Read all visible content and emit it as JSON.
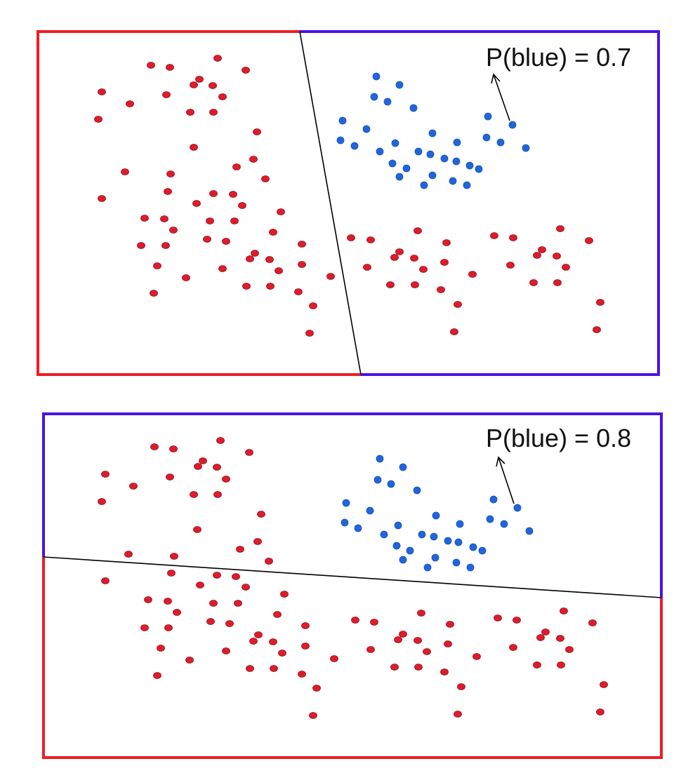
{
  "colors": {
    "red": "#ee1c25",
    "blue": "#4a12e6",
    "red_point": "#e01b2c",
    "blue_point": "#1f66dd",
    "boundary": "#000000"
  },
  "panels": [
    {
      "label": "P(blue) = 0.7",
      "boundary": "steep diagonal line",
      "red_points": [
        [
          310,
          83
        ],
        [
          215,
          93
        ],
        [
          242,
          96
        ],
        [
          350,
          100
        ],
        [
          284,
          113
        ],
        [
          276,
          121
        ],
        [
          303,
          122
        ],
        [
          145,
          131
        ],
        [
          237,
          135
        ],
        [
          317,
          138
        ],
        [
          185,
          148
        ],
        [
          271,
          160
        ],
        [
          304,
          160
        ],
        [
          140,
          170
        ],
        [
          366,
          188
        ],
        [
          276,
          210
        ],
        [
          361,
          227
        ],
        [
          337,
          238
        ],
        [
          178,
          245
        ],
        [
          243,
          248
        ],
        [
          378,
          255
        ],
        [
          239,
          273
        ],
        [
          304,
          276
        ],
        [
          332,
          277
        ],
        [
          145,
          283
        ],
        [
          280,
          290
        ],
        [
          345,
          293
        ],
        [
          400,
          302
        ],
        [
          206,
          311
        ],
        [
          234,
          312
        ],
        [
          299,
          315
        ],
        [
          334,
          315
        ],
        [
          247,
          328
        ],
        [
          389,
          331
        ],
        [
          295,
          341
        ],
        [
          322,
          344
        ],
        [
          201,
          350
        ],
        [
          236,
          350
        ],
        [
          430,
          348
        ],
        [
          363,
          361
        ],
        [
          356,
          369
        ],
        [
          384,
          370
        ],
        [
          224,
          379
        ],
        [
          317,
          383
        ],
        [
          397,
          386
        ],
        [
          430,
          377
        ],
        [
          265,
          396
        ],
        [
          471,
          394
        ],
        [
          351,
          408
        ],
        [
          385,
          408
        ],
        [
          219,
          418
        ],
        [
          425,
          416
        ],
        [
          446,
          436
        ],
        [
          441,
          475
        ],
        [
          595,
          329
        ],
        [
          500,
          339
        ],
        [
          528,
          342
        ],
        [
          636,
          346
        ],
        [
          704,
          336
        ],
        [
          731,
          339
        ],
        [
          798,
          326
        ],
        [
          839,
          343
        ],
        [
          569,
          359
        ],
        [
          562,
          367
        ],
        [
          590,
          368
        ],
        [
          772,
          356
        ],
        [
          765,
          364
        ],
        [
          793,
          365
        ],
        [
          523,
          381
        ],
        [
          603,
          384
        ],
        [
          633,
          374
        ],
        [
          727,
          378
        ],
        [
          806,
          381
        ],
        [
          673,
          391
        ],
        [
          556,
          406
        ],
        [
          591,
          406
        ],
        [
          628,
          413
        ],
        [
          760,
          403
        ],
        [
          794,
          403
        ],
        [
          652,
          434
        ],
        [
          855,
          431
        ],
        [
          647,
          473
        ],
        [
          850,
          470
        ]
      ],
      "blue_points": [
        [
          536,
          109
        ],
        [
          569,
          121
        ],
        [
          533,
          138
        ],
        [
          552,
          145
        ],
        [
          589,
          154
        ],
        [
          488,
          172
        ],
        [
          522,
          184
        ],
        [
          616,
          190
        ],
        [
          695,
          166
        ],
        [
          730,
          178
        ],
        [
          485,
          200
        ],
        [
          505,
          208
        ],
        [
          563,
          204
        ],
        [
          651,
          203
        ],
        [
          693,
          196
        ],
        [
          713,
          203
        ],
        [
          749,
          211
        ],
        [
          541,
          216
        ],
        [
          596,
          216
        ],
        [
          613,
          220
        ],
        [
          633,
          226
        ],
        [
          650,
          230
        ],
        [
          669,
          236
        ],
        [
          682,
          241
        ],
        [
          559,
          233
        ],
        [
          579,
          240
        ],
        [
          569,
          252
        ],
        [
          616,
          250
        ],
        [
          604,
          264
        ],
        [
          645,
          258
        ],
        [
          665,
          264
        ]
      ]
    },
    {
      "label": "P(blue) = 0.8",
      "boundary": "nearly horizontal line",
      "red_points": [
        [
          314,
          628
        ],
        [
          220,
          637
        ],
        [
          247,
          640
        ],
        [
          355,
          645
        ],
        [
          289,
          657
        ],
        [
          282,
          665
        ],
        [
          309,
          666
        ],
        [
          150,
          676
        ],
        [
          242,
          680
        ],
        [
          322,
          683
        ],
        [
          190,
          693
        ],
        [
          276,
          705
        ],
        [
          310,
          705
        ],
        [
          145,
          715
        ],
        [
          372,
          733
        ],
        [
          281,
          755
        ],
        [
          367,
          772
        ],
        [
          342,
          783
        ],
        [
          183,
          790
        ],
        [
          248,
          793
        ],
        [
          383,
          800
        ],
        [
          244,
          817
        ],
        [
          309,
          820
        ],
        [
          336,
          822
        ],
        [
          150,
          828
        ],
        [
          285,
          834
        ],
        [
          350,
          837
        ],
        [
          405,
          847
        ],
        [
          211,
          855
        ],
        [
          239,
          857
        ],
        [
          304,
          860
        ],
        [
          339,
          860
        ],
        [
          252,
          873
        ],
        [
          395,
          876
        ],
        [
          300,
          886
        ],
        [
          327,
          889
        ],
        [
          206,
          895
        ],
        [
          240,
          895
        ],
        [
          435,
          892
        ],
        [
          368,
          905
        ],
        [
          361,
          914
        ],
        [
          389,
          915
        ],
        [
          229,
          924
        ],
        [
          322,
          928
        ],
        [
          402,
          931
        ],
        [
          435,
          921
        ],
        [
          270,
          941
        ],
        [
          476,
          939
        ],
        [
          356,
          953
        ],
        [
          390,
          953
        ],
        [
          224,
          963
        ],
        [
          430,
          961
        ],
        [
          451,
          981
        ],
        [
          446,
          1020
        ],
        [
          600,
          874
        ],
        [
          506,
          884
        ],
        [
          533,
          887
        ],
        [
          641,
          890
        ],
        [
          709,
          881
        ],
        [
          736,
          884
        ],
        [
          803,
          871
        ],
        [
          844,
          888
        ],
        [
          574,
          904
        ],
        [
          567,
          912
        ],
        [
          595,
          913
        ],
        [
          777,
          901
        ],
        [
          770,
          909
        ],
        [
          798,
          910
        ],
        [
          528,
          926
        ],
        [
          608,
          929
        ],
        [
          638,
          918
        ],
        [
          731,
          923
        ],
        [
          811,
          926
        ],
        [
          679,
          936
        ],
        [
          562,
          951
        ],
        [
          596,
          951
        ],
        [
          633,
          958
        ],
        [
          765,
          948
        ],
        [
          799,
          948
        ],
        [
          657,
          979
        ],
        [
          860,
          976
        ],
        [
          652,
          1018
        ],
        [
          855,
          1015
        ]
      ],
      "blue_points": [
        [
          541,
          654
        ],
        [
          574,
          666
        ],
        [
          538,
          684
        ],
        [
          557,
          690
        ],
        [
          594,
          699
        ],
        [
          493,
          717
        ],
        [
          527,
          728
        ],
        [
          621,
          735
        ],
        [
          703,
          712
        ],
        [
          737,
          724
        ],
        [
          491,
          745
        ],
        [
          510,
          753
        ],
        [
          567,
          749
        ],
        [
          655,
          747
        ],
        [
          698,
          740
        ],
        [
          718,
          747
        ],
        [
          754,
          757
        ],
        [
          547,
          762
        ],
        [
          601,
          762
        ],
        [
          618,
          765
        ],
        [
          638,
          771
        ],
        [
          653,
          773
        ],
        [
          674,
          780
        ],
        [
          687,
          785
        ],
        [
          565,
          778
        ],
        [
          584,
          785
        ],
        [
          574,
          798
        ],
        [
          620,
          795
        ],
        [
          609,
          809
        ],
        [
          650,
          802
        ],
        [
          670,
          809
        ]
      ]
    }
  ]
}
